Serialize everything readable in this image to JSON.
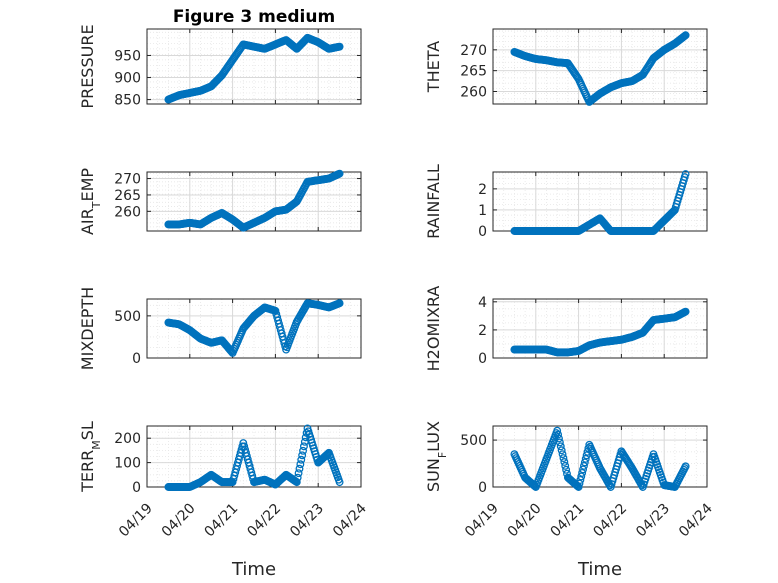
{
  "figure_title": "Figure 3 medium",
  "xlabel": "Time",
  "x_ticks": [
    "04/19",
    "04/20",
    "04/21",
    "04/22",
    "04/23",
    "04/24"
  ],
  "marker_color": "#0072BD",
  "chart_data": [
    {
      "type": "scatter",
      "title": "Figure 3 medium",
      "ylabel": "PRESSURE",
      "ylim": [
        840,
        1010
      ],
      "yticks": [
        850,
        900,
        950
      ],
      "grid": "on",
      "xlim": [
        "04/19",
        "04/24"
      ],
      "x": [
        "04/19 12:00",
        "04/19 18:00",
        "04/20 00:00",
        "04/20 06:00",
        "04/20 12:00",
        "04/20 18:00",
        "04/21 00:00",
        "04/21 06:00",
        "04/21 12:00",
        "04/21 18:00",
        "04/22 00:00",
        "04/22 06:00",
        "04/22 12:00",
        "04/22 18:00",
        "04/23 00:00",
        "04/23 06:00",
        "04/23 12:00"
      ],
      "y": [
        850,
        860,
        865,
        870,
        880,
        905,
        940,
        975,
        970,
        965,
        975,
        985,
        965,
        990,
        980,
        965,
        970
      ]
    },
    {
      "type": "scatter",
      "title": "",
      "ylabel": "THETA",
      "ylim": [
        257,
        275
      ],
      "yticks": [
        260,
        265,
        270
      ],
      "grid": "on",
      "xlim": [
        "04/19",
        "04/24"
      ],
      "x": [
        "04/19 12:00",
        "04/19 18:00",
        "04/20 00:00",
        "04/20 06:00",
        "04/20 12:00",
        "04/20 18:00",
        "04/21 00:00",
        "04/21 06:00",
        "04/21 12:00",
        "04/21 18:00",
        "04/22 00:00",
        "04/22 06:00",
        "04/22 12:00",
        "04/22 18:00",
        "04/23 00:00",
        "04/23 06:00",
        "04/23 12:00"
      ],
      "y": [
        269.5,
        268.5,
        267.8,
        267.5,
        267,
        266.8,
        263,
        257.5,
        259.5,
        261,
        262,
        262.5,
        264,
        268,
        270,
        271.5,
        273.5
      ]
    },
    {
      "type": "scatter",
      "title": "",
      "ylabel": "AIR_TEMP",
      "ylim": [
        254,
        272
      ],
      "yticks": [
        260,
        265,
        270
      ],
      "grid": "on",
      "xlim": [
        "04/19",
        "04/24"
      ],
      "x": [
        "04/19 12:00",
        "04/19 18:00",
        "04/20 00:00",
        "04/20 06:00",
        "04/20 12:00",
        "04/20 18:00",
        "04/21 00:00",
        "04/21 06:00",
        "04/21 12:00",
        "04/21 18:00",
        "04/22 00:00",
        "04/22 06:00",
        "04/22 12:00",
        "04/22 18:00",
        "04/23 00:00",
        "04/23 06:00",
        "04/23 12:00"
      ],
      "y": [
        256,
        256,
        256.5,
        256,
        258,
        259.5,
        257.5,
        255,
        256.5,
        258,
        260,
        260.5,
        263,
        269,
        269.5,
        270,
        271.5
      ]
    },
    {
      "type": "scatter",
      "title": "",
      "ylabel": "RAINFALL",
      "ylim": [
        0,
        2.8
      ],
      "yticks": [
        0,
        1,
        2
      ],
      "grid": "on",
      "xlim": [
        "04/19",
        "04/24"
      ],
      "x": [
        "04/19 12:00",
        "04/19 18:00",
        "04/20 00:00",
        "04/20 06:00",
        "04/20 12:00",
        "04/20 18:00",
        "04/21 00:00",
        "04/21 06:00",
        "04/21 12:00",
        "04/21 18:00",
        "04/22 00:00",
        "04/22 06:00",
        "04/22 12:00",
        "04/22 18:00",
        "04/23 00:00",
        "04/23 06:00",
        "04/23 12:00"
      ],
      "y": [
        0,
        0,
        0,
        0,
        0,
        0,
        0,
        0.3,
        0.6,
        0,
        0,
        0,
        0,
        0,
        0.5,
        1.0,
        2.7
      ]
    },
    {
      "type": "scatter",
      "title": "",
      "ylabel": "MIXDEPTH",
      "ylim": [
        0,
        700
      ],
      "yticks": [
        0,
        500
      ],
      "grid": "on",
      "xlim": [
        "04/19",
        "04/24"
      ],
      "x": [
        "04/19 12:00",
        "04/19 18:00",
        "04/20 00:00",
        "04/20 06:00",
        "04/20 12:00",
        "04/20 18:00",
        "04/21 00:00",
        "04/21 06:00",
        "04/21 12:00",
        "04/21 18:00",
        "04/22 00:00",
        "04/22 06:00",
        "04/22 12:00",
        "04/22 18:00",
        "04/23 00:00",
        "04/23 06:00",
        "04/23 12:00"
      ],
      "y": [
        420,
        400,
        330,
        230,
        180,
        210,
        60,
        350,
        500,
        600,
        560,
        100,
        430,
        650,
        630,
        600,
        650
      ]
    },
    {
      "type": "scatter",
      "title": "",
      "ylabel": "H2OMIXRA",
      "ylim": [
        0,
        4.2
      ],
      "yticks": [
        0,
        2,
        4
      ],
      "grid": "on",
      "xlim": [
        "04/19",
        "04/24"
      ],
      "x": [
        "04/19 12:00",
        "04/19 18:00",
        "04/20 00:00",
        "04/20 06:00",
        "04/20 12:00",
        "04/20 18:00",
        "04/21 00:00",
        "04/21 06:00",
        "04/21 12:00",
        "04/21 18:00",
        "04/22 00:00",
        "04/22 06:00",
        "04/22 12:00",
        "04/22 18:00",
        "04/23 00:00",
        "04/23 06:00",
        "04/23 12:00"
      ],
      "y": [
        0.6,
        0.6,
        0.6,
        0.6,
        0.4,
        0.4,
        0.5,
        0.9,
        1.1,
        1.2,
        1.3,
        1.5,
        1.8,
        2.7,
        2.8,
        2.9,
        3.3
      ]
    },
    {
      "type": "scatter",
      "title": "",
      "ylabel": "TERR_MSL",
      "ylim": [
        0,
        250
      ],
      "yticks": [
        0,
        100,
        200
      ],
      "grid": "on",
      "xlim": [
        "04/19",
        "04/24"
      ],
      "x": [
        "04/19 12:00",
        "04/19 18:00",
        "04/20 00:00",
        "04/20 06:00",
        "04/20 12:00",
        "04/20 18:00",
        "04/21 00:00",
        "04/21 06:00",
        "04/21 12:00",
        "04/21 18:00",
        "04/22 00:00",
        "04/22 06:00",
        "04/22 12:00",
        "04/22 18:00",
        "04/23 00:00",
        "04/23 06:00",
        "04/23 12:00"
      ],
      "y": [
        0,
        0,
        0,
        20,
        50,
        20,
        20,
        180,
        20,
        30,
        10,
        50,
        20,
        240,
        100,
        140,
        20
      ]
    },
    {
      "type": "scatter",
      "title": "",
      "ylabel": "SUN_FLUX",
      "ylim": [
        0,
        650
      ],
      "yticks": [
        0,
        500
      ],
      "grid": "on",
      "xlim": [
        "04/19",
        "04/24"
      ],
      "x": [
        "04/19 12:00",
        "04/19 18:00",
        "04/20 00:00",
        "04/20 06:00",
        "04/20 12:00",
        "04/20 18:00",
        "04/21 00:00",
        "04/21 06:00",
        "04/21 12:00",
        "04/21 18:00",
        "04/22 00:00",
        "04/22 06:00",
        "04/22 12:00",
        "04/22 18:00",
        "04/23 00:00",
        "04/23 06:00",
        "04/23 12:00"
      ],
      "y": [
        350,
        100,
        0,
        300,
        600,
        100,
        0,
        450,
        200,
        0,
        380,
        200,
        0,
        350,
        20,
        0,
        220
      ]
    }
  ]
}
